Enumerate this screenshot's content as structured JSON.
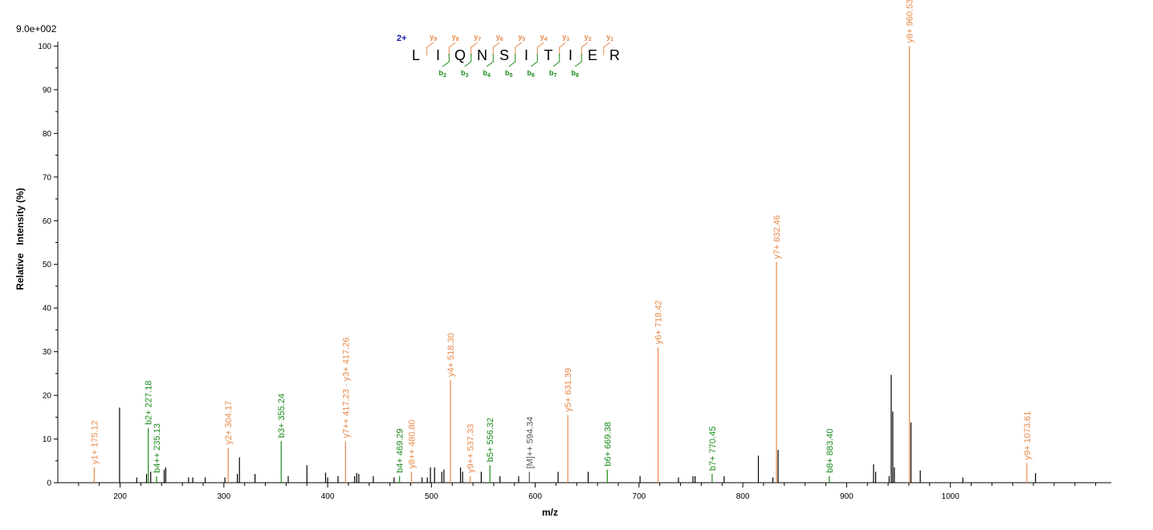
{
  "colors": {
    "y": "#e8894a",
    "b": "#1b8a1b",
    "other": "#555555",
    "unannotated": "#000000",
    "charge": "#1a1aa6"
  },
  "chart_data": {
    "type": "bar",
    "scale_label": "9.0e+002",
    "xlabel": "m/z",
    "ylabel": "Relative   Intensity (%)",
    "xlim": [
      140,
      1155
    ],
    "ylim": [
      0,
      101
    ],
    "xticks": [
      200,
      300,
      400,
      500,
      600,
      700,
      800,
      900,
      1000
    ],
    "yticks": [
      0,
      10,
      20,
      30,
      40,
      50,
      60,
      70,
      80,
      90,
      100
    ],
    "annotated_peaks": [
      {
        "mz": 175.12,
        "intensity": 3.5,
        "ion": "y",
        "label": "y1+ 175.12"
      },
      {
        "mz": 227.18,
        "intensity": 12.5,
        "ion": "b",
        "label": "b2+ 227.18"
      },
      {
        "mz": 235.13,
        "intensity": 1.5,
        "ion": "b",
        "label": "b4++ 235.13"
      },
      {
        "mz": 304.17,
        "intensity": 8.0,
        "ion": "y",
        "label": "y2+ 304.17"
      },
      {
        "mz": 355.24,
        "intensity": 9.5,
        "ion": "b",
        "label": "b3+ 355.24"
      },
      {
        "mz": 417.23,
        "intensity": 9.5,
        "ion": "y",
        "label": "y7++ 417.23 · y3+ 417.26"
      },
      {
        "mz": 469.29,
        "intensity": 1.5,
        "ion": "b",
        "label": "b4+ 469.29"
      },
      {
        "mz": 480.8,
        "intensity": 2.5,
        "ion": "y",
        "label": "y8++ 480.80"
      },
      {
        "mz": 518.3,
        "intensity": 23.5,
        "ion": "y",
        "label": "y4+ 518.30"
      },
      {
        "mz": 537.33,
        "intensity": 1.5,
        "ion": "y",
        "label": "y9++ 537.33"
      },
      {
        "mz": 556.32,
        "intensity": 4.0,
        "ion": "b",
        "label": "b5+ 556.32"
      },
      {
        "mz": 594.34,
        "intensity": 2.5,
        "ion": "other",
        "label": "[M]++ 594.34"
      },
      {
        "mz": 631.39,
        "intensity": 15.5,
        "ion": "y",
        "label": "y5+ 631.39"
      },
      {
        "mz": 669.38,
        "intensity": 3.0,
        "ion": "b",
        "label": "b6+ 669.38"
      },
      {
        "mz": 718.42,
        "intensity": 31.0,
        "ion": "y",
        "label": "y6+ 718.42"
      },
      {
        "mz": 770.45,
        "intensity": 2.0,
        "ion": "b",
        "label": "b7+ 770.45"
      },
      {
        "mz": 832.46,
        "intensity": 50.5,
        "ion": "y",
        "label": "y7+ 832.46"
      },
      {
        "mz": 883.4,
        "intensity": 1.5,
        "ion": "b",
        "label": "b8+ 883.40"
      },
      {
        "mz": 960.53,
        "intensity": 100,
        "ion": "y",
        "label": "y8+ 960.53"
      },
      {
        "mz": 1073.61,
        "intensity": 4.5,
        "ion": "y",
        "label": "y9+ 1073.61"
      }
    ],
    "unannotated_peaks": [
      {
        "mz": 199.5,
        "intensity": 17.2
      },
      {
        "mz": 216,
        "intensity": 1.2
      },
      {
        "mz": 225.5,
        "intensity": 2.0
      },
      {
        "mz": 229.5,
        "intensity": 2.5
      },
      {
        "mz": 242.5,
        "intensity": 3.0
      },
      {
        "mz": 244,
        "intensity": 3.5
      },
      {
        "mz": 266,
        "intensity": 1.2
      },
      {
        "mz": 270,
        "intensity": 1.2
      },
      {
        "mz": 282,
        "intensity": 1.2
      },
      {
        "mz": 301,
        "intensity": 1.2
      },
      {
        "mz": 313,
        "intensity": 2.0
      },
      {
        "mz": 315,
        "intensity": 5.8
      },
      {
        "mz": 330,
        "intensity": 2.0
      },
      {
        "mz": 362,
        "intensity": 1.5
      },
      {
        "mz": 380,
        "intensity": 4.0
      },
      {
        "mz": 398,
        "intensity": 2.3
      },
      {
        "mz": 400,
        "intensity": 1.2
      },
      {
        "mz": 410,
        "intensity": 1.5
      },
      {
        "mz": 426,
        "intensity": 1.5
      },
      {
        "mz": 428,
        "intensity": 2.2
      },
      {
        "mz": 430,
        "intensity": 2.0
      },
      {
        "mz": 444,
        "intensity": 1.5
      },
      {
        "mz": 464,
        "intensity": 1.2
      },
      {
        "mz": 491,
        "intensity": 1.2
      },
      {
        "mz": 496,
        "intensity": 1.2
      },
      {
        "mz": 499,
        "intensity": 3.5
      },
      {
        "mz": 503,
        "intensity": 3.5
      },
      {
        "mz": 510,
        "intensity": 2.5
      },
      {
        "mz": 512,
        "intensity": 3.0
      },
      {
        "mz": 528,
        "intensity": 3.5
      },
      {
        "mz": 530,
        "intensity": 2.5
      },
      {
        "mz": 548,
        "intensity": 2.5
      },
      {
        "mz": 566,
        "intensity": 1.5
      },
      {
        "mz": 584,
        "intensity": 1.5
      },
      {
        "mz": 622,
        "intensity": 2.5
      },
      {
        "mz": 651,
        "intensity": 2.5
      },
      {
        "mz": 701,
        "intensity": 1.5
      },
      {
        "mz": 738,
        "intensity": 1.2
      },
      {
        "mz": 752,
        "intensity": 1.5
      },
      {
        "mz": 754,
        "intensity": 1.5
      },
      {
        "mz": 782,
        "intensity": 1.5
      },
      {
        "mz": 815,
        "intensity": 6.2
      },
      {
        "mz": 829,
        "intensity": 1.2
      },
      {
        "mz": 834,
        "intensity": 7.5
      },
      {
        "mz": 926,
        "intensity": 4.2
      },
      {
        "mz": 928,
        "intensity": 2.5
      },
      {
        "mz": 941,
        "intensity": 1.5
      },
      {
        "mz": 943,
        "intensity": 24.7
      },
      {
        "mz": 944.5,
        "intensity": 16.3
      },
      {
        "mz": 946,
        "intensity": 3.5
      },
      {
        "mz": 962,
        "intensity": 13.8
      },
      {
        "mz": 971,
        "intensity": 2.8
      },
      {
        "mz": 1012,
        "intensity": 1.2
      },
      {
        "mz": 1082,
        "intensity": 2.2
      }
    ],
    "peptide": {
      "charge_label": "2+",
      "sequence": [
        "L",
        "I",
        "Q",
        "N",
        "S",
        "I",
        "T",
        "I",
        "E",
        "R"
      ],
      "y_marks": [
        {
          "ion": "y",
          "num": "9"
        },
        {
          "ion": "y",
          "num": "8"
        },
        {
          "ion": "y",
          "num": "7"
        },
        {
          "ion": "y",
          "num": "6"
        },
        {
          "ion": "y",
          "num": "5"
        },
        {
          "ion": "y",
          "num": "4"
        },
        {
          "ion": "y",
          "num": "3"
        },
        {
          "ion": "y",
          "num": "2"
        },
        {
          "ion": "y",
          "num": "1"
        }
      ],
      "b_marks": [
        {
          "ion": "b",
          "num": "2"
        },
        {
          "ion": "b",
          "num": "3"
        },
        {
          "ion": "b",
          "num": "4"
        },
        {
          "ion": "b",
          "num": "5"
        },
        {
          "ion": "b",
          "num": "6"
        },
        {
          "ion": "b",
          "num": "7"
        },
        {
          "ion": "b",
          "num": "8"
        }
      ]
    }
  }
}
